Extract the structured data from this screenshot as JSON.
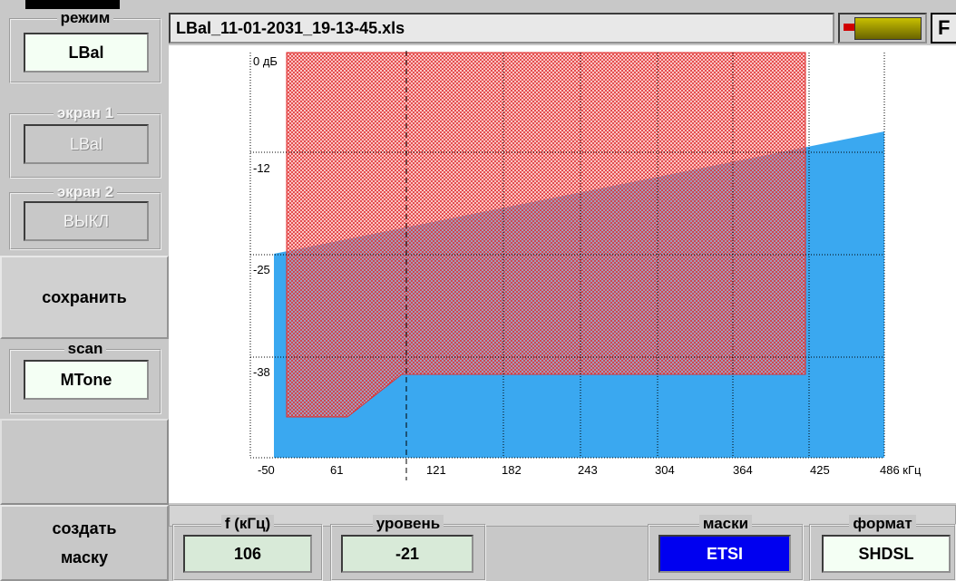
{
  "sidebar": {
    "mode": {
      "label": "режим",
      "value": "LBal"
    },
    "screen1": {
      "label": "экран 1",
      "value": "LBal"
    },
    "screen2": {
      "label": "экран 2",
      "value": "ВЫКЛ"
    },
    "save": "сохранить",
    "scan": {
      "label": "scan",
      "value": "MTone"
    },
    "create_mask": [
      "создать",
      "маску"
    ]
  },
  "header": {
    "filename": "LBal_11-01-2031_19-13-45.xls",
    "button": "F"
  },
  "plot": {
    "y_labels": [
      "0 дБ",
      "-12",
      "-25",
      "-38"
    ],
    "x_labels": [
      "-50",
      "61",
      "121",
      "182",
      "243",
      "304",
      "364",
      "425",
      "486 кГц"
    ]
  },
  "footer": {
    "freq": {
      "label": "f (кГц)",
      "value": "106"
    },
    "level": {
      "label": "уровень",
      "value": "-21"
    },
    "masks": {
      "label": "маски",
      "value": "ETSI"
    },
    "format": {
      "label": "формат",
      "value": "SHDSL"
    }
  }
}
